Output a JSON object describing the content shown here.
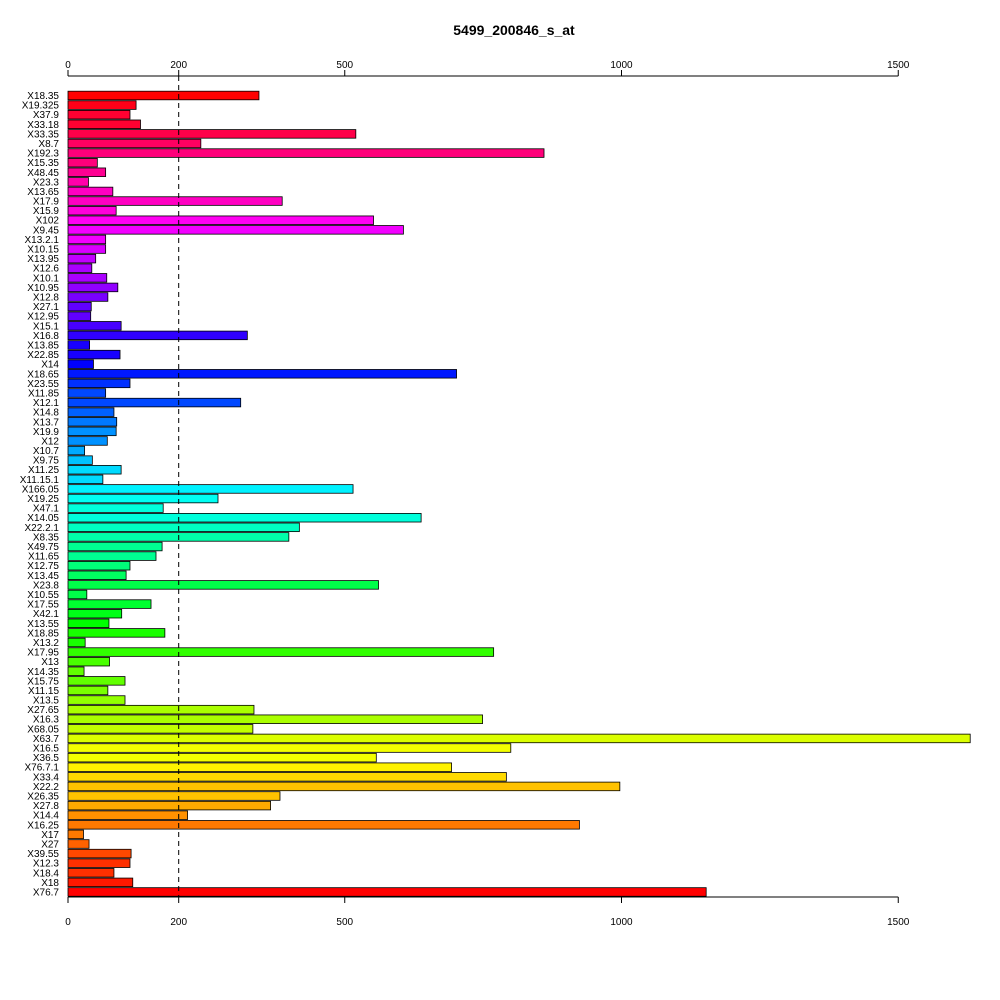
{
  "chart_data": {
    "type": "bar",
    "orientation": "horizontal",
    "title": "5499_200846_s_at",
    "xlabel": "",
    "ylabel": "",
    "xlim": [
      0,
      1630
    ],
    "x_ticks": [
      0,
      200,
      500,
      1000,
      1500
    ],
    "reference_line": 200,
    "axes": "top and bottom",
    "grid": false,
    "legend": "none",
    "categories": [
      "X18.35",
      "X19.325",
      "X37.9",
      "X33.18",
      "X33.35",
      "X8.7",
      "X192.3",
      "X15.35",
      "X48.45",
      "X23.3",
      "X13.65",
      "X17.9",
      "X15.9",
      "X102",
      "X9.45",
      "X13.2.1",
      "X10.15",
      "X13.95",
      "X12.6",
      "X10.1",
      "X10.95",
      "X12.8",
      "X27.1",
      "X12.95",
      "X15.1",
      "X16.8",
      "X13.85",
      "X22.85",
      "X14",
      "X18.65",
      "X23.55",
      "X11.85",
      "X12.1",
      "X14.8",
      "X13.7",
      "X19.9",
      "X12",
      "X10.7",
      "X9.75",
      "X11.25",
      "X11.15.1",
      "X166.05",
      "X19.25",
      "X47.1",
      "X14.05",
      "X22.2.1",
      "X8.35",
      "X49.75",
      "X11.65",
      "X12.75",
      "X13.45",
      "X23.8",
      "X10.55",
      "X17.55",
      "X42.1",
      "X13.55",
      "X18.85",
      "X13.2",
      "X17.95",
      "X13",
      "X14.35",
      "X15.75",
      "X11.15",
      "X13.5",
      "X27.65",
      "X16.3",
      "X68.05",
      "X63.7",
      "X16.5",
      "X36.5",
      "X76.7.1",
      "X33.4",
      "X22.2",
      "X26.35",
      "X27.8",
      "X14.4",
      "X16.25",
      "X17",
      "X27",
      "X39.55",
      "X12.3",
      "X18.4",
      "X18",
      "X76.7"
    ],
    "values": [
      345,
      123,
      112,
      131,
      520,
      240,
      860,
      53,
      68,
      37,
      81,
      387,
      87,
      552,
      606,
      68,
      68,
      50,
      43,
      70,
      90,
      72,
      42,
      41,
      96,
      324,
      39,
      94,
      46,
      702,
      112,
      68,
      312,
      83,
      88,
      87,
      71,
      30,
      44,
      96,
      63,
      515,
      271,
      172,
      638,
      418,
      399,
      170,
      159,
      112,
      105,
      561,
      34,
      150,
      97,
      74,
      175,
      31,
      769,
      75,
      29,
      103,
      72,
      103,
      336,
      749,
      334,
      1630,
      800,
      557,
      693,
      792,
      997,
      383,
      366,
      216,
      924,
      28,
      38,
      114,
      112,
      83,
      117,
      1153
    ],
    "colors": [
      "#ff0000",
      "#ff0018",
      "#ff0031",
      "#ff0049",
      "#ff0061",
      "#ff007a",
      "#ff0092",
      "#ff00aa",
      "#ff00c2",
      "#ff00db",
      "#ff00f3",
      "#f200ff",
      "#da00ff",
      "#c200ff",
      "#aa00ff",
      "#9100ff",
      "#7900ff",
      "#6100ff",
      "#4800ff",
      "#3000ff",
      "#1800ff",
      "#0000ff",
      "#0018ff",
      "#0030ff",
      "#0048ff",
      "#0061ff",
      "#0079ff",
      "#0091ff",
      "#00aaff",
      "#00c2ff",
      "#00daff",
      "#00f2ff",
      "#00fff3",
      "#00ffdb",
      "#00ffc2",
      "#00ffaa",
      "#00ff92",
      "#00ff79",
      "#00ff61",
      "#00ff49",
      "#00ff30",
      "#00ff18",
      "#00ff00",
      "#18ff00",
      "#31ff00",
      "#49ff00",
      "#61ff00",
      "#79ff00",
      "#92ff00",
      "#aaff00",
      "#c2ff00",
      "#dbff00",
      "#f3ff00",
      "#fff200",
      "#ffda00",
      "#ffc200",
      "#ffaa00",
      "#ff9100",
      "#ff7900",
      "#ff6100",
      "#ff4800",
      "#ff3000",
      "#ff1800",
      "#ff0000"
    ]
  }
}
